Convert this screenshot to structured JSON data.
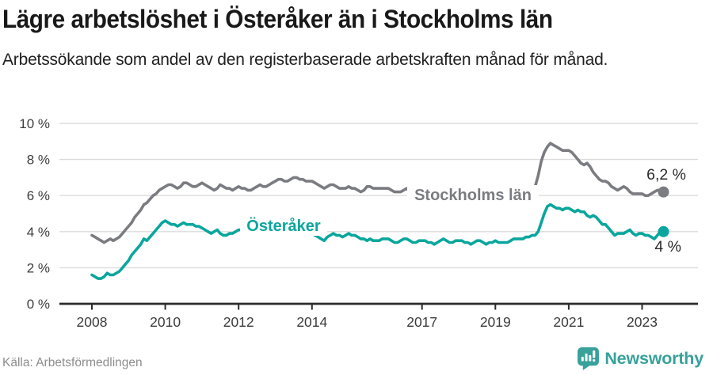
{
  "title": "Lägre arbetslöshet i Österåker än i Stockholms län",
  "subtitle": "Arbetssökande som andel av den registerbaserade arbetskraften månad för månad.",
  "source": "Källa: Arbetsförmedlingen",
  "logo": {
    "text": "Newsworthy",
    "icon": "newsworthy-badge-icon",
    "color": "#37a19a"
  },
  "colors": {
    "accent_teal": "#0aa69d",
    "accent_gray": "#7b7c81",
    "grid": "#dcdcdc",
    "axis": "#2b2b2b",
    "tick_text": "#3c3c3c",
    "end_label_text": "#2b2b2b"
  },
  "chart_data": {
    "type": "line",
    "title": "Lägre arbetslöshet i Österåker än i Stockholms län",
    "subtitle": "Arbetssökande som andel av den registerbaserade arbetskraften månad för månad.",
    "x_unit": "month",
    "x_start": "2008-01",
    "x_end": "2023-08",
    "xlabel": "",
    "ylabel": "",
    "ylim": [
      0,
      10
    ],
    "grid": "horizontal",
    "x_tick_years": [
      2008,
      2010,
      2012,
      2014,
      2017,
      2019,
      2021,
      2023
    ],
    "x_tick_labels": [
      "2008",
      "2010",
      "2012",
      "2014",
      "2017",
      "2019",
      "2021",
      "2023"
    ],
    "y_tick_values": [
      0,
      2,
      4,
      6,
      8,
      10
    ],
    "y_tick_labels": [
      "0 %",
      "2 %",
      "4 %",
      "6 %",
      "8 %",
      "10 %"
    ],
    "series": [
      {
        "name": "Stockholms län",
        "color": "#7b7c81",
        "end_label": "6,2 %",
        "end_value": 6.2,
        "values": [
          3.8,
          3.7,
          3.6,
          3.5,
          3.4,
          3.5,
          3.6,
          3.5,
          3.6,
          3.7,
          3.9,
          4.1,
          4.3,
          4.5,
          4.8,
          5.0,
          5.2,
          5.5,
          5.6,
          5.8,
          6.0,
          6.1,
          6.3,
          6.4,
          6.5,
          6.6,
          6.6,
          6.5,
          6.4,
          6.5,
          6.7,
          6.7,
          6.6,
          6.5,
          6.5,
          6.6,
          6.7,
          6.6,
          6.5,
          6.4,
          6.3,
          6.4,
          6.6,
          6.5,
          6.4,
          6.4,
          6.3,
          6.4,
          6.5,
          6.4,
          6.4,
          6.3,
          6.3,
          6.4,
          6.5,
          6.6,
          6.5,
          6.5,
          6.6,
          6.7,
          6.8,
          6.9,
          6.9,
          6.8,
          6.8,
          6.9,
          7.0,
          7.0,
          6.9,
          6.9,
          6.8,
          6.8,
          6.8,
          6.7,
          6.6,
          6.5,
          6.4,
          6.5,
          6.6,
          6.6,
          6.5,
          6.4,
          6.4,
          6.4,
          6.5,
          6.4,
          6.4,
          6.3,
          6.2,
          6.3,
          6.5,
          6.5,
          6.4,
          6.4,
          6.4,
          6.4,
          6.4,
          6.4,
          6.3,
          6.2,
          6.2,
          6.2,
          6.3,
          6.4,
          6.2,
          6.1,
          6.1,
          6.1,
          6.2,
          6.1,
          6.1,
          6.0,
          5.9,
          6.0,
          6.1,
          6.2,
          6.1,
          6.0,
          6.0,
          6.0,
          6.1,
          6.0,
          5.9,
          5.9,
          5.8,
          5.9,
          6.0,
          6.0,
          5.9,
          5.8,
          5.8,
          5.9,
          6.0,
          5.9,
          5.9,
          5.9,
          5.9,
          6.0,
          6.2,
          6.2,
          6.1,
          6.1,
          6.2,
          6.3,
          6.4,
          6.5,
          7.1,
          7.9,
          8.4,
          8.7,
          8.9,
          8.8,
          8.7,
          8.6,
          8.5,
          8.5,
          8.5,
          8.4,
          8.2,
          8.0,
          7.8,
          7.7,
          7.8,
          7.6,
          7.3,
          7.1,
          6.9,
          6.8,
          6.8,
          6.7,
          6.5,
          6.4,
          6.3,
          6.4,
          6.5,
          6.4,
          6.2,
          6.1,
          6.1,
          6.1,
          6.1,
          6.0,
          6.0,
          6.1,
          6.2,
          6.3,
          6.3,
          6.2
        ]
      },
      {
        "name": "Österåker",
        "color": "#0aa69d",
        "end_label": "4 %",
        "end_value": 4.0,
        "values": [
          1.6,
          1.5,
          1.4,
          1.4,
          1.5,
          1.7,
          1.6,
          1.6,
          1.7,
          1.8,
          2.0,
          2.2,
          2.4,
          2.7,
          2.9,
          3.1,
          3.3,
          3.6,
          3.5,
          3.7,
          3.9,
          4.1,
          4.3,
          4.5,
          4.6,
          4.5,
          4.4,
          4.4,
          4.3,
          4.4,
          4.5,
          4.4,
          4.4,
          4.4,
          4.3,
          4.3,
          4.2,
          4.1,
          4.0,
          3.9,
          4.0,
          4.1,
          3.9,
          3.8,
          3.8,
          3.9,
          3.9,
          4.0,
          4.1,
          4.1,
          4.0,
          4.0,
          4.1,
          4.2,
          4.2,
          4.1,
          4.1,
          4.2,
          4.2,
          4.3,
          4.3,
          4.4,
          4.4,
          4.3,
          4.2,
          4.3,
          4.4,
          4.3,
          4.2,
          4.1,
          4.0,
          3.9,
          3.9,
          3.8,
          3.7,
          3.6,
          3.5,
          3.7,
          3.8,
          3.9,
          3.8,
          3.8,
          3.7,
          3.8,
          3.9,
          3.8,
          3.8,
          3.7,
          3.6,
          3.6,
          3.5,
          3.6,
          3.5,
          3.5,
          3.5,
          3.6,
          3.6,
          3.6,
          3.5,
          3.4,
          3.4,
          3.5,
          3.6,
          3.6,
          3.5,
          3.4,
          3.4,
          3.5,
          3.5,
          3.5,
          3.4,
          3.4,
          3.3,
          3.4,
          3.5,
          3.6,
          3.5,
          3.4,
          3.4,
          3.5,
          3.5,
          3.5,
          3.4,
          3.4,
          3.3,
          3.4,
          3.5,
          3.5,
          3.4,
          3.3,
          3.4,
          3.4,
          3.5,
          3.4,
          3.4,
          3.4,
          3.4,
          3.5,
          3.6,
          3.6,
          3.6,
          3.6,
          3.7,
          3.7,
          3.8,
          3.8,
          4.0,
          4.5,
          5.0,
          5.4,
          5.5,
          5.4,
          5.3,
          5.3,
          5.2,
          5.3,
          5.3,
          5.2,
          5.1,
          5.2,
          5.1,
          5.1,
          4.9,
          4.8,
          4.9,
          4.8,
          4.6,
          4.4,
          4.4,
          4.2,
          4.0,
          3.8,
          3.9,
          3.9,
          3.9,
          4.0,
          4.1,
          3.9,
          3.8,
          3.9,
          3.9,
          3.8,
          3.8,
          3.7,
          3.6,
          3.8,
          4.0,
          4.0
        ]
      }
    ],
    "legend_position": "inline-labels"
  }
}
